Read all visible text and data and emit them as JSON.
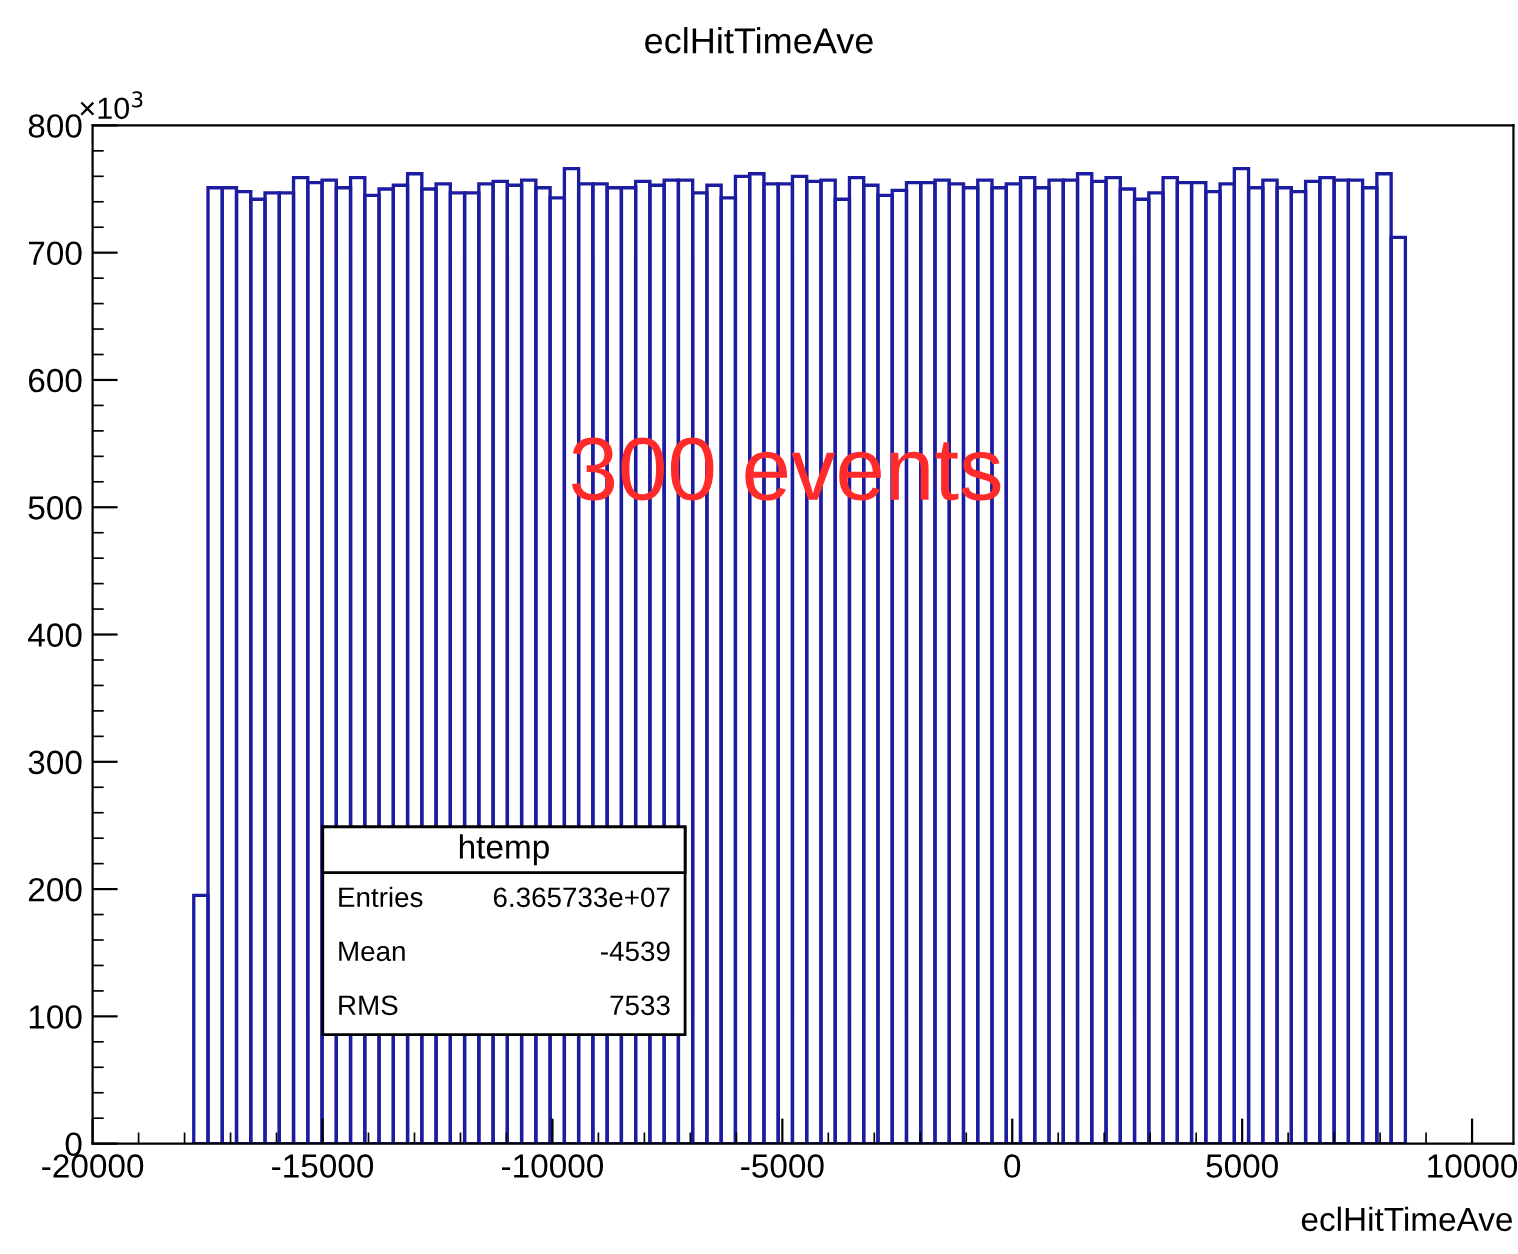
{
  "chart_data": {
    "type": "histogram",
    "title": "eclHitTimeAve",
    "xlabel": "eclHitTimeAve",
    "bins": [
      -17800,
      -17490,
      -17180,
      -16870,
      -16560,
      -16250,
      -15940,
      -15630,
      -15320,
      -15010,
      -14700,
      -14390,
      -14080,
      -13770,
      -13460,
      -13150,
      -12840,
      -12530,
      -12220,
      -11910,
      -11600,
      -11290,
      -10980,
      -10670,
      -10360,
      -10050,
      -9740,
      -9430,
      -9120,
      -8810,
      -8500,
      -8190,
      -7880,
      -7570,
      -7260,
      -6950,
      -6640,
      -6330,
      -6020,
      -5710,
      -5400,
      -5090,
      -4780,
      -4470,
      -4160,
      -3850,
      -3540,
      -3230,
      -2920,
      -2610,
      -2300,
      -1990,
      -1680,
      -1370,
      -1060,
      -750,
      -440,
      -130,
      180,
      490,
      800,
      1110,
      1420,
      1730,
      2040,
      2350,
      2660,
      2970,
      3280,
      3590,
      3900,
      4210,
      4520,
      4830,
      5140,
      5450,
      5760,
      6070,
      6380,
      6690,
      7000,
      7310,
      7620,
      7930,
      8240,
      8550
    ],
    "values": [
      195,
      751,
      751,
      748,
      742,
      747,
      747,
      759,
      755,
      757,
      751,
      759,
      745,
      750,
      753,
      762,
      750,
      754,
      747,
      747,
      754,
      756,
      753,
      757,
      751,
      743,
      766,
      754,
      754,
      751,
      751,
      756,
      753,
      757,
      757,
      747,
      753,
      743,
      760,
      762,
      754,
      754,
      760,
      756,
      757,
      742,
      759,
      753,
      745,
      749,
      755,
      755,
      757,
      754,
      751,
      757,
      751,
      754,
      759,
      751,
      757,
      757,
      762,
      756,
      759,
      750,
      742,
      747,
      759,
      755,
      755,
      748,
      754,
      766,
      751,
      757,
      751,
      748,
      756,
      759,
      757,
      757,
      751,
      762,
      712
    ],
    "color": "#1c1ca0",
    "xlim": [
      -20000,
      10900
    ],
    "ylim": [
      0,
      800
    ],
    "xticks": [
      -20000,
      -15000,
      -10000,
      -5000,
      0,
      5000,
      10000
    ],
    "yticks": [
      0,
      100,
      200,
      300,
      400,
      500,
      600,
      700,
      800
    ],
    "annotations": [
      "300 events",
      "×10$^{3}$",
      "htemp",
      "Entries",
      "6.365733e+07",
      "Mean",
      "-4539",
      "RMS",
      "7533"
    ]
  }
}
